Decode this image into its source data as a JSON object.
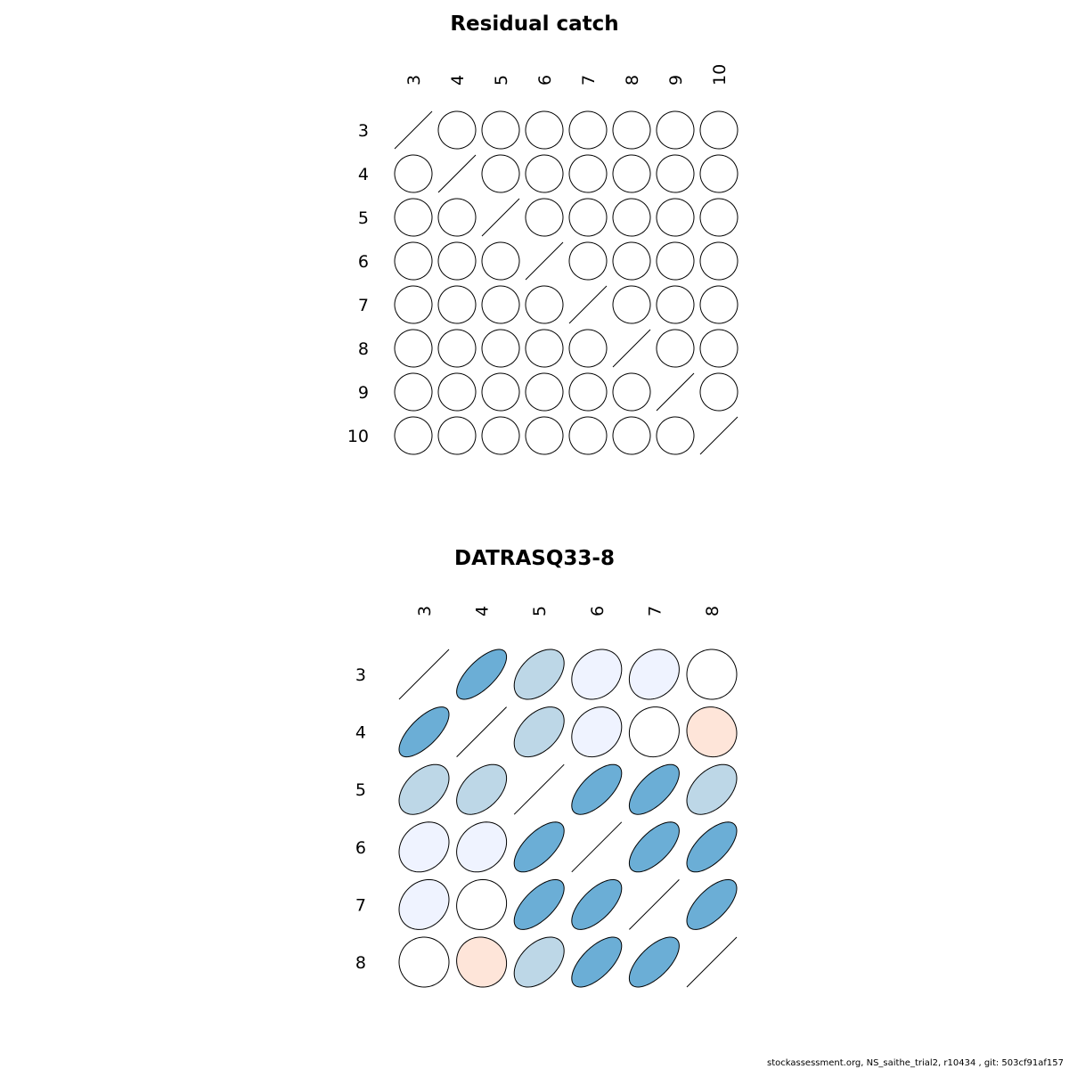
{
  "chart_data": [
    {
      "type": "heatmap",
      "style": "correlation-ellipse",
      "title": "Residual catch",
      "labels": [
        "3",
        "4",
        "5",
        "6",
        "7",
        "8",
        "9",
        "10"
      ],
      "matrix": [
        [
          1,
          0,
          0,
          0,
          0,
          0,
          0,
          0
        ],
        [
          0,
          1,
          0,
          0,
          0,
          0,
          0,
          0
        ],
        [
          0,
          0,
          1,
          0,
          0,
          0,
          0,
          0
        ],
        [
          0,
          0,
          0,
          1,
          0,
          0,
          0,
          0
        ],
        [
          0,
          0,
          0,
          0,
          1,
          0,
          0,
          0
        ],
        [
          0,
          0,
          0,
          0,
          0,
          1,
          0,
          0
        ],
        [
          0,
          0,
          0,
          0,
          0,
          0,
          1,
          0
        ],
        [
          0,
          0,
          0,
          0,
          0,
          0,
          0,
          1
        ]
      ]
    },
    {
      "type": "heatmap",
      "style": "correlation-ellipse",
      "title": "DATRASQ33-8",
      "labels": [
        "3",
        "4",
        "5",
        "6",
        "7",
        "8"
      ],
      "matrix": [
        [
          1,
          0.7,
          0.45,
          0.2,
          0.2,
          0.0
        ],
        [
          0.7,
          1,
          0.45,
          0.2,
          0.05,
          -0.05
        ],
        [
          0.45,
          0.45,
          1,
          0.65,
          0.65,
          0.45
        ],
        [
          0.2,
          0.2,
          0.65,
          1,
          0.65,
          0.65
        ],
        [
          0.2,
          0.05,
          0.65,
          0.65,
          1,
          0.65
        ],
        [
          0.0,
          -0.05,
          0.45,
          0.65,
          0.65,
          1
        ]
      ]
    }
  ],
  "palette": {
    "strong_positive": "#6BAED6",
    "moderate_positive": "#BDD7E7",
    "weak_positive": "#EFF3FF",
    "near_zero": "#FFFFFF",
    "weak_negative": "#FEE5D9"
  },
  "footer": "stockassessment.org, NS_saithe_trial2, r10434 , git: 503cf91af157"
}
